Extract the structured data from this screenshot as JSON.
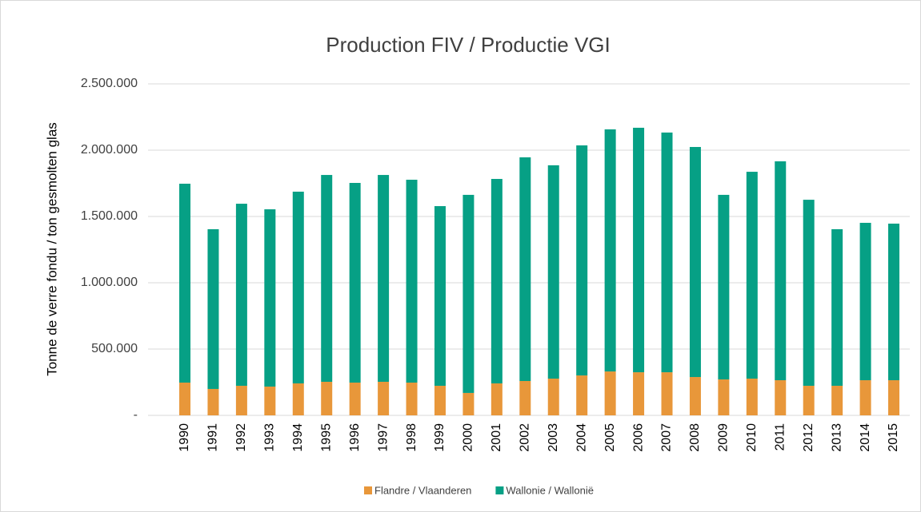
{
  "chart_data": {
    "type": "stacked_bar",
    "title": "Production FIV / Productie VGI",
    "y_label": "Tonne de verre fondu / ton gesmolten glas",
    "categories": [
      "1990",
      "1991",
      "1992",
      "1993",
      "1994",
      "1995",
      "1996",
      "1997",
      "1998",
      "1999",
      "2000",
      "2001",
      "2002",
      "2003",
      "2004",
      "2005",
      "2006",
      "2007",
      "2008",
      "2009",
      "2010",
      "2011",
      "2012",
      "2013",
      "2014",
      "2015"
    ],
    "series": [
      {
        "name": "Flandre / Vlaanderen",
        "color": "#e8973a",
        "values": [
          247000,
          199000,
          223000,
          217000,
          241000,
          253000,
          247000,
          253000,
          247000,
          223000,
          169000,
          241000,
          259000,
          277000,
          301000,
          331000,
          325000,
          325000,
          289000,
          271000,
          277000,
          265000,
          223000,
          223000,
          265000,
          265000
        ]
      },
      {
        "name": "Wallonie / Wallonië",
        "color": "#06a085",
        "values": [
          1500000,
          1205000,
          1373000,
          1337000,
          1446000,
          1560000,
          1506000,
          1560000,
          1530000,
          1355000,
          1494000,
          1542000,
          1687000,
          1609000,
          1735000,
          1826000,
          1844000,
          1808000,
          1735000,
          1392000,
          1560000,
          1651000,
          1403000,
          1181000,
          1187000,
          1181000
        ]
      }
    ],
    "ylim": [
      0,
      2500000
    ],
    "yticks": [
      {
        "value": 0,
        "label": "-"
      },
      {
        "value": 500000,
        "label": "500.000"
      },
      {
        "value": 1000000,
        "label": "1.000.000"
      },
      {
        "value": 1500000,
        "label": "1.500.000"
      },
      {
        "value": 2000000,
        "label": "2.000.000"
      },
      {
        "value": 2500000,
        "label": "2.500.000"
      }
    ],
    "grid": true,
    "legend": "bottom"
  }
}
